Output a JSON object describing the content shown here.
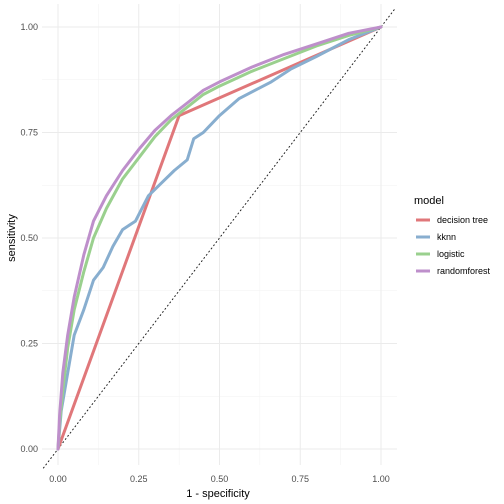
{
  "chart_data": {
    "type": "line",
    "xlabel": "1 - specificity",
    "ylabel": "sensitivity",
    "xlim": [
      0,
      1
    ],
    "ylim": [
      0,
      1
    ],
    "x_ticks": [
      "0.00",
      "0.25",
      "0.50",
      "0.75",
      "1.00"
    ],
    "y_ticks": [
      "0.00",
      "0.25",
      "0.50",
      "0.75",
      "1.00"
    ],
    "grid": true,
    "reference_line": "diagonal dotted",
    "legend": {
      "title": "model",
      "position": "right"
    },
    "series": [
      {
        "name": "decision tree",
        "color": "#E0777A",
        "points": [
          [
            0,
            0
          ],
          [
            0.375,
            0.79
          ],
          [
            1,
            1
          ]
        ]
      },
      {
        "name": "kknn",
        "color": "#88AECF",
        "points": [
          [
            0,
            0
          ],
          [
            0.01,
            0.09
          ],
          [
            0.03,
            0.18
          ],
          [
            0.05,
            0.27
          ],
          [
            0.08,
            0.33
          ],
          [
            0.11,
            0.4
          ],
          [
            0.14,
            0.43
          ],
          [
            0.17,
            0.48
          ],
          [
            0.2,
            0.52
          ],
          [
            0.24,
            0.54
          ],
          [
            0.28,
            0.6
          ],
          [
            0.32,
            0.63
          ],
          [
            0.36,
            0.66
          ],
          [
            0.4,
            0.685
          ],
          [
            0.42,
            0.735
          ],
          [
            0.45,
            0.75
          ],
          [
            0.5,
            0.79
          ],
          [
            0.56,
            0.83
          ],
          [
            0.61,
            0.85
          ],
          [
            0.66,
            0.87
          ],
          [
            0.72,
            0.9
          ],
          [
            0.8,
            0.93
          ],
          [
            0.9,
            0.97
          ],
          [
            1,
            1
          ]
        ]
      },
      {
        "name": "logistic",
        "color": "#9AD08E",
        "points": [
          [
            0,
            0
          ],
          [
            0.005,
            0.06
          ],
          [
            0.015,
            0.14
          ],
          [
            0.03,
            0.24
          ],
          [
            0.05,
            0.33
          ],
          [
            0.08,
            0.42
          ],
          [
            0.11,
            0.5
          ],
          [
            0.15,
            0.57
          ],
          [
            0.2,
            0.64
          ],
          [
            0.25,
            0.69
          ],
          [
            0.3,
            0.74
          ],
          [
            0.35,
            0.78
          ],
          [
            0.4,
            0.81
          ],
          [
            0.45,
            0.84
          ],
          [
            0.5,
            0.86
          ],
          [
            0.6,
            0.895
          ],
          [
            0.7,
            0.925
          ],
          [
            0.8,
            0.955
          ],
          [
            0.9,
            0.98
          ],
          [
            1,
            1
          ]
        ]
      },
      {
        "name": "randomforest",
        "color": "#BE8FCB",
        "points": [
          [
            0,
            0
          ],
          [
            0.005,
            0.08
          ],
          [
            0.015,
            0.18
          ],
          [
            0.03,
            0.27
          ],
          [
            0.05,
            0.36
          ],
          [
            0.08,
            0.46
          ],
          [
            0.11,
            0.54
          ],
          [
            0.15,
            0.6
          ],
          [
            0.2,
            0.66
          ],
          [
            0.25,
            0.71
          ],
          [
            0.3,
            0.755
          ],
          [
            0.35,
            0.79
          ],
          [
            0.4,
            0.82
          ],
          [
            0.45,
            0.85
          ],
          [
            0.5,
            0.87
          ],
          [
            0.6,
            0.905
          ],
          [
            0.7,
            0.935
          ],
          [
            0.8,
            0.96
          ],
          [
            0.9,
            0.985
          ],
          [
            1,
            1
          ]
        ]
      }
    ]
  }
}
